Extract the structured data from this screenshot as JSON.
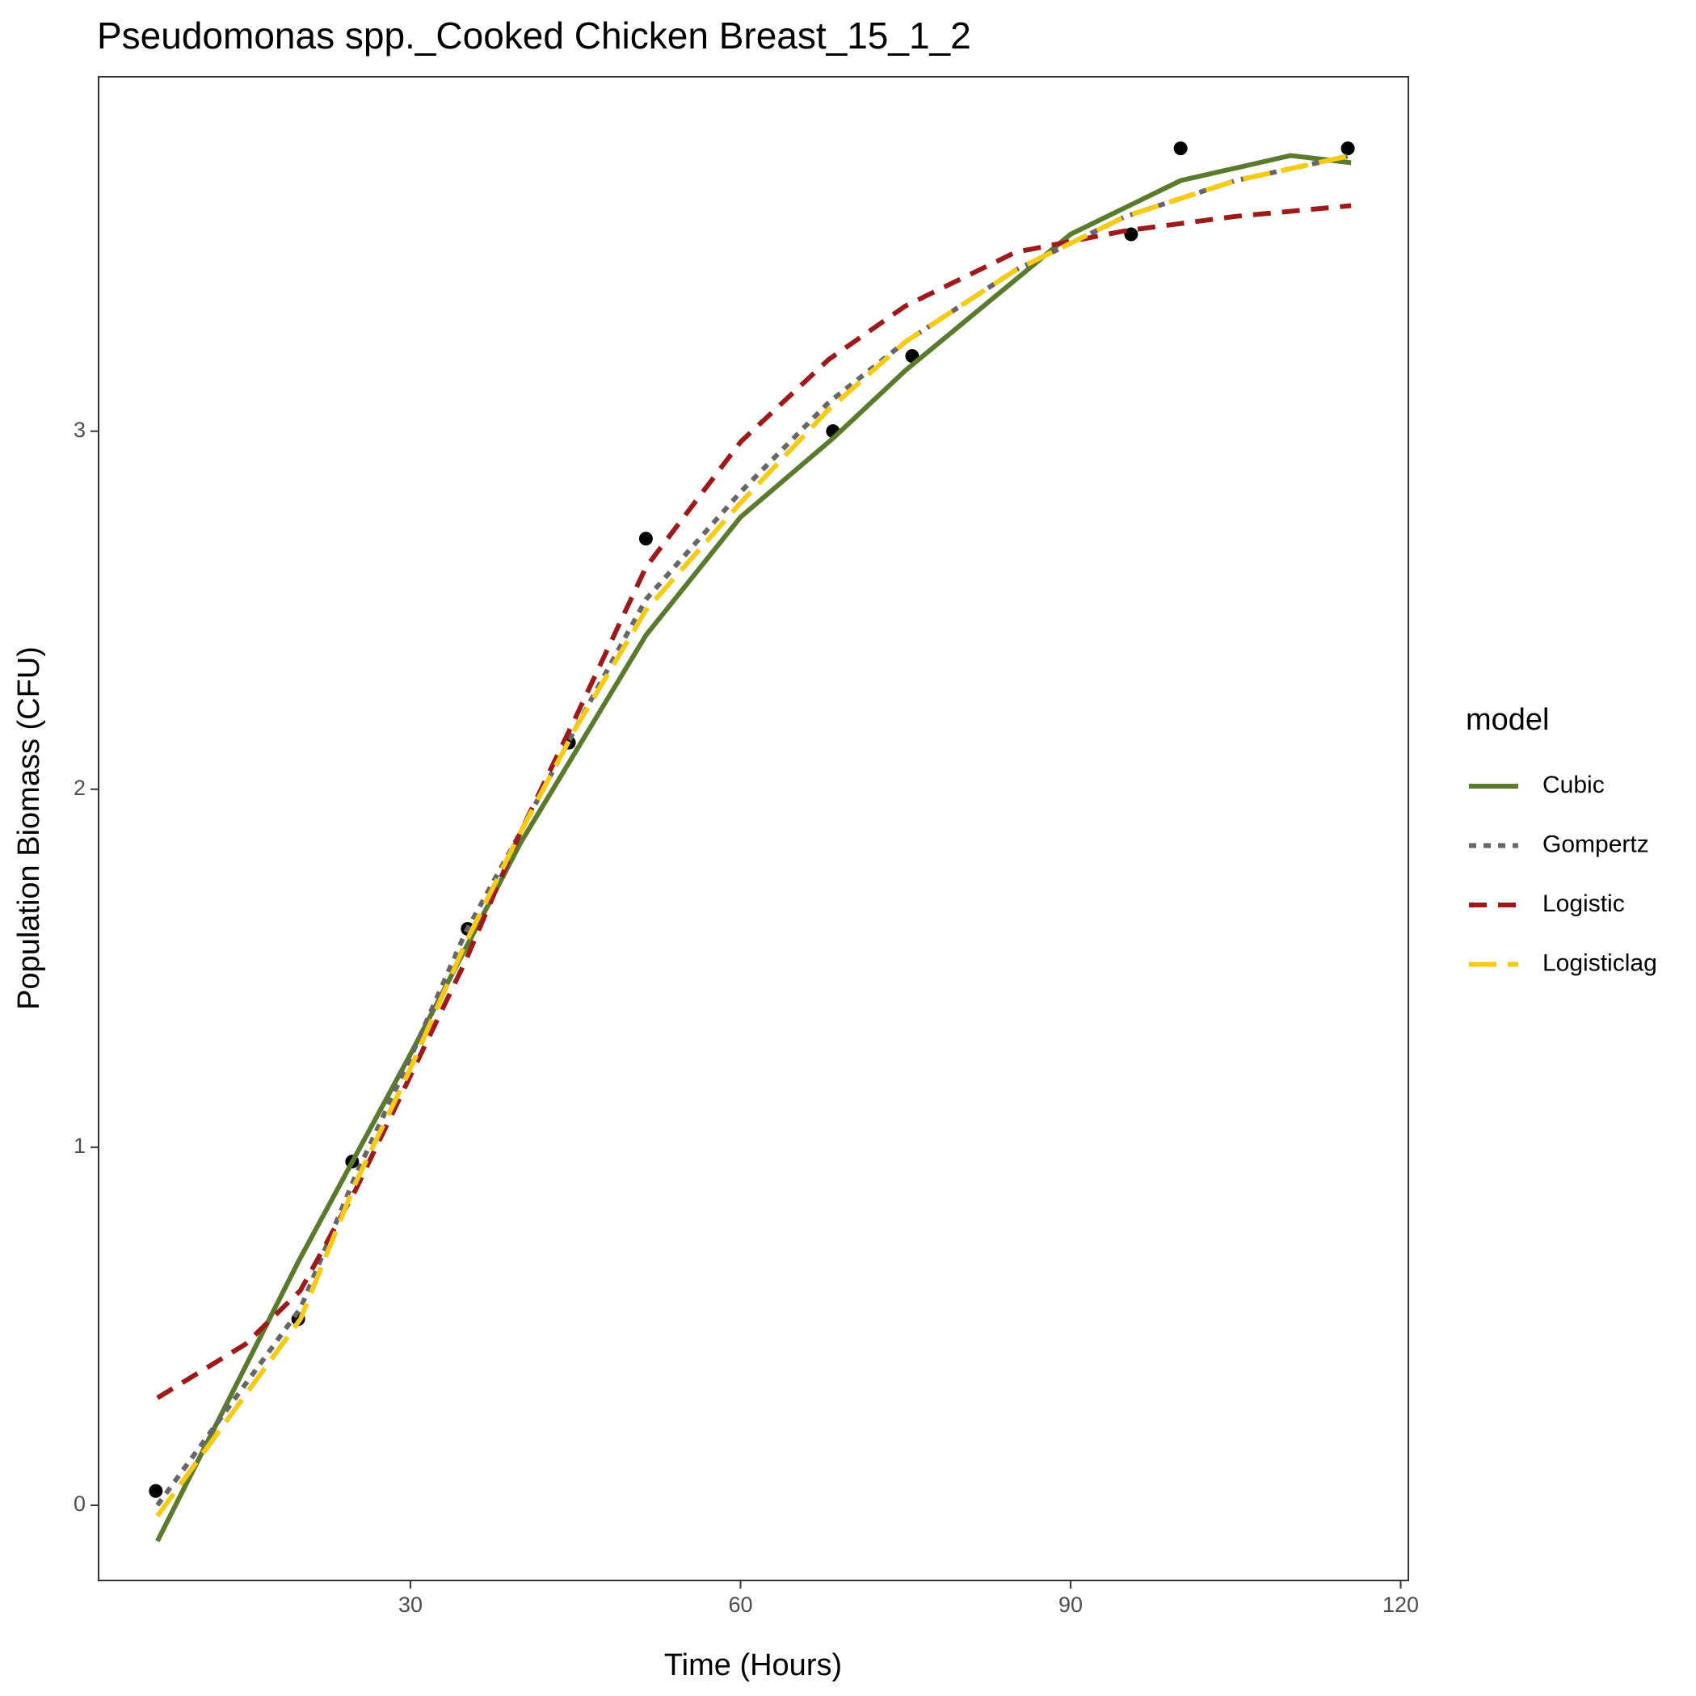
{
  "chart_data": {
    "type": "line",
    "title": "Pseudomonas spp._Cooked Chicken Breast_15_1_2",
    "x_label": "Time (Hours)",
    "y_label": "Population Biomass (CFU)",
    "xlim": [
      1.65,
      120.7
    ],
    "ylim": [
      -0.21,
      3.99
    ],
    "xticks": [
      30,
      60,
      90,
      120
    ],
    "yticks": [
      0,
      1,
      2,
      3
    ],
    "grid": false,
    "legend_title": "model",
    "legend_position": "right",
    "points": {
      "color": "#000000",
      "x": [
        6.85,
        19.8,
        24.7,
        35.2,
        44.4,
        51.4,
        68.4,
        75.6,
        95.5,
        100.0,
        115.2
      ],
      "values": [
        0.04,
        0.52,
        0.96,
        1.61,
        2.13,
        2.7,
        3.0,
        3.21,
        3.55,
        3.79,
        3.79
      ]
    },
    "series": [
      {
        "name": "Cubic",
        "color": "#5b7a2e",
        "linetype": "solid",
        "x": [
          7,
          19.8,
          30,
          40,
          51.4,
          60,
          68.4,
          75,
          90,
          100,
          110,
          115.5
        ],
        "values": [
          -0.1,
          0.68,
          1.26,
          1.85,
          2.43,
          2.76,
          2.98,
          3.17,
          3.55,
          3.7,
          3.77,
          3.75
        ]
      },
      {
        "name": "Gompertz",
        "color": "#666666",
        "linetype": "dotted",
        "x": [
          7,
          20,
          25,
          30,
          35,
          40,
          45,
          51.4,
          60,
          68,
          75,
          85,
          95,
          105,
          115.5
        ],
        "values": [
          0.0,
          0.55,
          0.92,
          1.25,
          1.6,
          1.88,
          2.17,
          2.53,
          2.83,
          3.08,
          3.25,
          3.45,
          3.6,
          3.7,
          3.77
        ]
      },
      {
        "name": "Logistic",
        "color": "#9e1a1a",
        "linetype": "dashed",
        "x": [
          7,
          15,
          20,
          25,
          30,
          35,
          40,
          45,
          51.4,
          60,
          68,
          75,
          85,
          95,
          105,
          115.5
        ],
        "values": [
          0.3,
          0.45,
          0.6,
          0.88,
          1.2,
          1.52,
          1.88,
          2.2,
          2.62,
          2.97,
          3.2,
          3.35,
          3.5,
          3.56,
          3.6,
          3.63
        ]
      },
      {
        "name": "Logisticlag",
        "color": "#f7cb15",
        "linetype": "longdash",
        "x": [
          7,
          20,
          25,
          30,
          35,
          40,
          45,
          51.4,
          60,
          68,
          75,
          85,
          95,
          105,
          115.5
        ],
        "values": [
          -0.03,
          0.52,
          0.9,
          1.22,
          1.57,
          1.88,
          2.17,
          2.5,
          2.8,
          3.06,
          3.25,
          3.45,
          3.6,
          3.7,
          3.77
        ]
      }
    ]
  }
}
